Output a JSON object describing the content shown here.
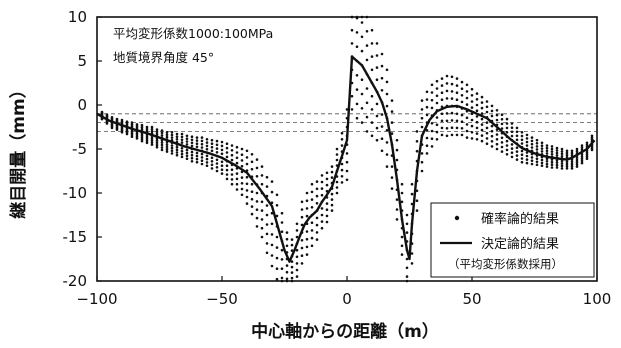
{
  "chart_data": {
    "type": "line",
    "title": "",
    "xlabel": "中心軸からの距離（m）",
    "ylabel": "継目開量（mm）",
    "xlim": [
      -100,
      100
    ],
    "ylim": [
      -20,
      10
    ],
    "x_ticks": [
      -100,
      -50,
      0,
      50,
      100
    ],
    "y_ticks": [
      10,
      5,
      0,
      -5,
      -10,
      -15,
      -20
    ],
    "x_tick_labels": [
      "−100",
      "−50",
      "0",
      "50",
      "100"
    ],
    "y_tick_labels": [
      "10",
      "5",
      "0",
      "-5",
      "-10",
      "-15",
      "-20"
    ],
    "grid": "dashed horizontal reference lines between 0 and -3 mm",
    "reference_lines": [
      -1,
      -2,
      -3
    ],
    "annotations": [
      "平均変形係数1000:100MPa",
      "地質境界角度 45°"
    ],
    "legend_position": "bottom-right",
    "series": [
      {
        "name": "決定論的結果",
        "style": "line",
        "x": [
          -100,
          -95,
          -90,
          -85,
          -80,
          -75,
          -70,
          -65,
          -60,
          -55,
          -50,
          -45,
          -40,
          -35,
          -30,
          -27,
          -25,
          -23,
          -21,
          -19,
          -17,
          -15,
          -12,
          -10,
          -8,
          -6,
          -4,
          -2,
          0,
          2,
          4,
          6,
          8,
          10,
          12,
          14,
          16,
          18,
          20,
          22,
          24,
          25,
          26,
          28,
          30,
          33,
          36,
          40,
          44,
          48,
          52,
          56,
          60,
          65,
          70,
          75,
          80,
          85,
          88,
          90,
          93,
          96,
          99
        ],
        "y": [
          -1,
          -1.8,
          -2.3,
          -2.8,
          -3.2,
          -3.7,
          -4.2,
          -4.7,
          -5.1,
          -5.5,
          -6.0,
          -6.8,
          -7.7,
          -9.5,
          -11.5,
          -14.5,
          -16.5,
          -17.8,
          -16.5,
          -15,
          -13.6,
          -12.8,
          -12.0,
          -11.0,
          -10.2,
          -9.3,
          -7.5,
          -5.8,
          -4.0,
          5.5,
          5.0,
          4.5,
          3.5,
          2.5,
          1.5,
          0.3,
          -1.5,
          -4.5,
          -8.5,
          -13.0,
          -16.5,
          -17.5,
          -13.5,
          -7.5,
          -3.5,
          -1.7,
          -0.7,
          -0.2,
          -0.1,
          -0.5,
          -1.0,
          -1.5,
          -2.5,
          -3.8,
          -4.9,
          -5.5,
          -5.9,
          -6.1,
          -6.2,
          -6.0,
          -5.5,
          -5.0,
          -4.0
        ]
      },
      {
        "name": "確率論的結果",
        "style": "scatter",
        "x": [
          -98,
          -96,
          -94,
          -92,
          -90,
          -88,
          -86,
          -84,
          -82,
          -80,
          -78,
          -76,
          -74,
          -72,
          -70,
          -68,
          -66,
          -64,
          -62,
          -60,
          -58,
          -56,
          -54,
          -52,
          -50,
          -48,
          -46,
          -44,
          -42,
          -40,
          -38,
          -36,
          -34,
          -32,
          -30,
          -28,
          -26,
          -24,
          -22,
          -20,
          -18,
          -16,
          -14,
          -12,
          -10,
          -8,
          -6,
          -4,
          -2,
          0,
          2,
          4,
          6,
          8,
          10,
          12,
          14,
          16,
          18,
          20,
          22,
          24,
          26,
          28,
          30,
          32,
          34,
          36,
          38,
          40,
          42,
          44,
          46,
          48,
          50,
          52,
          54,
          56,
          58,
          60,
          62,
          64,
          66,
          68,
          70,
          72,
          74,
          76,
          78,
          80,
          82,
          84,
          86,
          88,
          90,
          92,
          94,
          96,
          98
        ],
        "y": [
          -1.2,
          -1.6,
          -2.0,
          -2.2,
          -2.4,
          -2.6,
          -2.8,
          -3.0,
          -3.2,
          -3.4,
          -3.5,
          -3.8,
          -4.0,
          -4.2,
          -4.3,
          -4.5,
          -4.6,
          -4.8,
          -5.0,
          -5.1,
          -5.2,
          -5.4,
          -5.6,
          -5.8,
          -6.0,
          -6.4,
          -6.8,
          -7.2,
          -7.6,
          -8.2,
          -9.0,
          -10.0,
          -11.0,
          -12.5,
          -13.5,
          -15.0,
          -16.5,
          -17.5,
          -17.8,
          -16.5,
          -14.5,
          -13.5,
          -12.5,
          -12.0,
          -11.0,
          -10.5,
          -9.5,
          -7.5,
          -6.0,
          -4.5,
          5.5,
          5.0,
          4.5,
          3.5,
          2.5,
          1.5,
          0.3,
          -1.5,
          -4.5,
          -8.5,
          -13.0,
          -16.5,
          -13.5,
          -7.5,
          -3.5,
          -2.0,
          -1.2,
          -0.6,
          -0.2,
          -0.1,
          -0.1,
          -0.2,
          -0.4,
          -0.7,
          -1.0,
          -1.3,
          -1.6,
          -2.0,
          -2.4,
          -2.8,
          -3.2,
          -3.6,
          -4.0,
          -4.4,
          -4.8,
          -5.0,
          -5.2,
          -5.4,
          -5.6,
          -5.8,
          -5.9,
          -6.0,
          -6.1,
          -6.2,
          -6.2,
          -6.0,
          -5.6,
          -5.2,
          -4.3
        ],
        "spread": [
          0.4,
          0.5,
          0.6,
          0.6,
          0.7,
          0.7,
          0.8,
          0.8,
          0.9,
          0.9,
          1.0,
          1.0,
          1.1,
          1.1,
          1.2,
          1.2,
          1.3,
          1.3,
          1.4,
          1.4,
          1.5,
          1.5,
          1.6,
          1.7,
          1.8,
          2.0,
          2.2,
          2.4,
          2.6,
          3.0,
          3.4,
          3.8,
          4.0,
          4.3,
          4.8,
          4.8,
          4.2,
          3.0,
          2.5,
          3.0,
          3.5,
          3.5,
          3.5,
          3.3,
          3.0,
          2.8,
          2.5,
          2.5,
          2.8,
          4.0,
          6.0,
          6.5,
          6.5,
          6.5,
          6.0,
          5.5,
          5.5,
          5.5,
          5.0,
          4.5,
          4.0,
          4.0,
          4.5,
          4.5,
          4.0,
          3.5,
          3.5,
          3.3,
          3.2,
          3.4,
          3.3,
          3.2,
          3.0,
          3.0,
          2.8,
          2.6,
          2.5,
          2.4,
          2.3,
          2.2,
          2.1,
          2.0,
          1.9,
          1.8,
          1.7,
          1.6,
          1.5,
          1.4,
          1.3,
          1.2,
          1.2,
          1.1,
          1.1,
          1.0,
          1.0,
          1.0,
          1.0,
          0.9,
          0.8
        ]
      }
    ]
  },
  "legend": {
    "probabilistic": "確率論的結果",
    "deterministic": "決定論的結果",
    "deterministic_note": "（平均変形係数採用）"
  }
}
